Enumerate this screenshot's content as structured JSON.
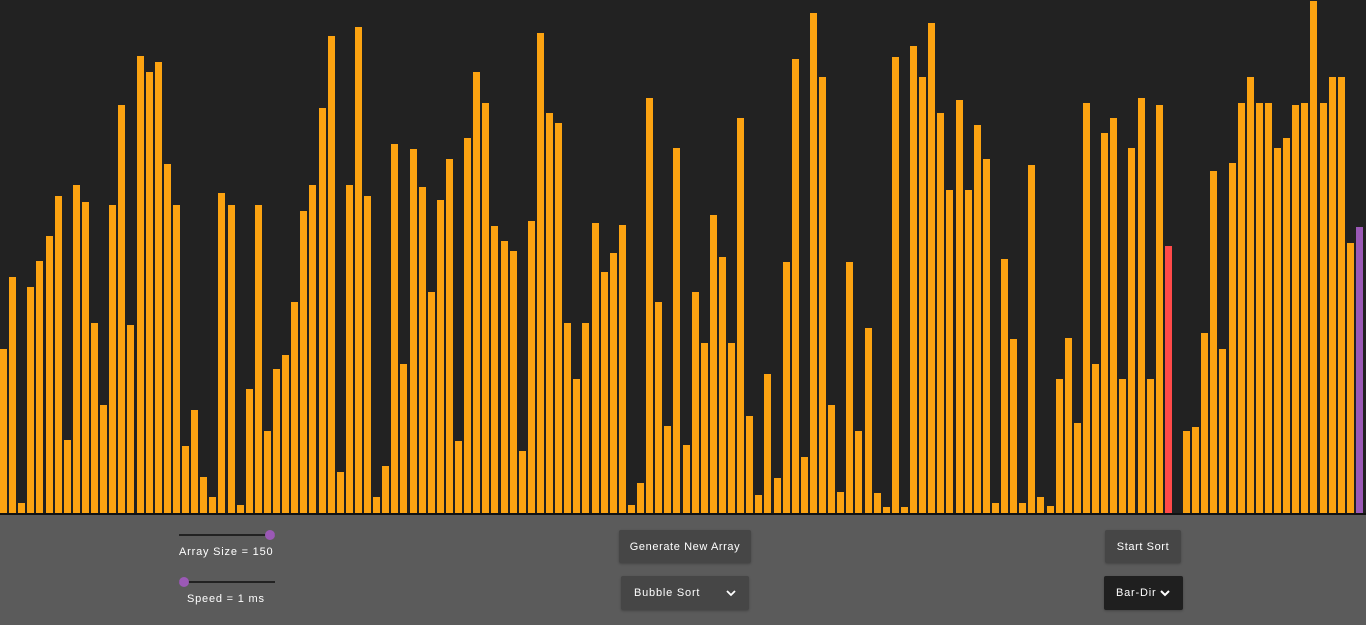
{
  "controls": {
    "array_size_label": "Array Size = 150",
    "array_size_value": 150,
    "speed_label": "Speed = 1 ms",
    "speed_value": 1,
    "generate_label": "Generate New Array",
    "algorithm_selected": "Bubble Sort",
    "start_label": "Start Sort",
    "mode_selected": "Bar-Dir"
  },
  "colors": {
    "bar": "#fca311",
    "compare": "#ff4a4a",
    "swap": "#2ecc71",
    "sorted": "#9b59b6",
    "thumb": "#9b59b6"
  },
  "icons": {
    "select_chevron": "chevron-down-icon"
  },
  "chart_data": {
    "type": "bar",
    "max_value": 513,
    "highlights": {
      "compare_index": 128,
      "swap_index": 129,
      "sorted_index": 149
    },
    "values": [
      164,
      236,
      10,
      226,
      252,
      277,
      317,
      73,
      328,
      311,
      190,
      108,
      308,
      408,
      188,
      457,
      441,
      451,
      349,
      308,
      67,
      103,
      36,
      16,
      320,
      308,
      8,
      124,
      308,
      82,
      144,
      158,
      211,
      302,
      328,
      405,
      477,
      41,
      328,
      486,
      317,
      16,
      47,
      369,
      149,
      364,
      326,
      221,
      313,
      354,
      72,
      375,
      441,
      410,
      287,
      272,
      262,
      62,
      292,
      480,
      400,
      390,
      190,
      134,
      190,
      290,
      241,
      260,
      288,
      8,
      30,
      415,
      211,
      87,
      365,
      68,
      221,
      170,
      298,
      256,
      170,
      395,
      97,
      18,
      139,
      35,
      251,
      454,
      56,
      500,
      436,
      108,
      21,
      251,
      82,
      185,
      20,
      6,
      456,
      6,
      467,
      436,
      490,
      400,
      323,
      413,
      323,
      388,
      354,
      10,
      254,
      174,
      10,
      348,
      16,
      7,
      134,
      175,
      90,
      410,
      149,
      380,
      395,
      134,
      365,
      415,
      134,
      408,
      267,
      0,
      82,
      86,
      180,
      342,
      164,
      350,
      410,
      436,
      410,
      410,
      365,
      375,
      408,
      410,
      512,
      410,
      436,
      436,
      270,
      286
    ]
  }
}
